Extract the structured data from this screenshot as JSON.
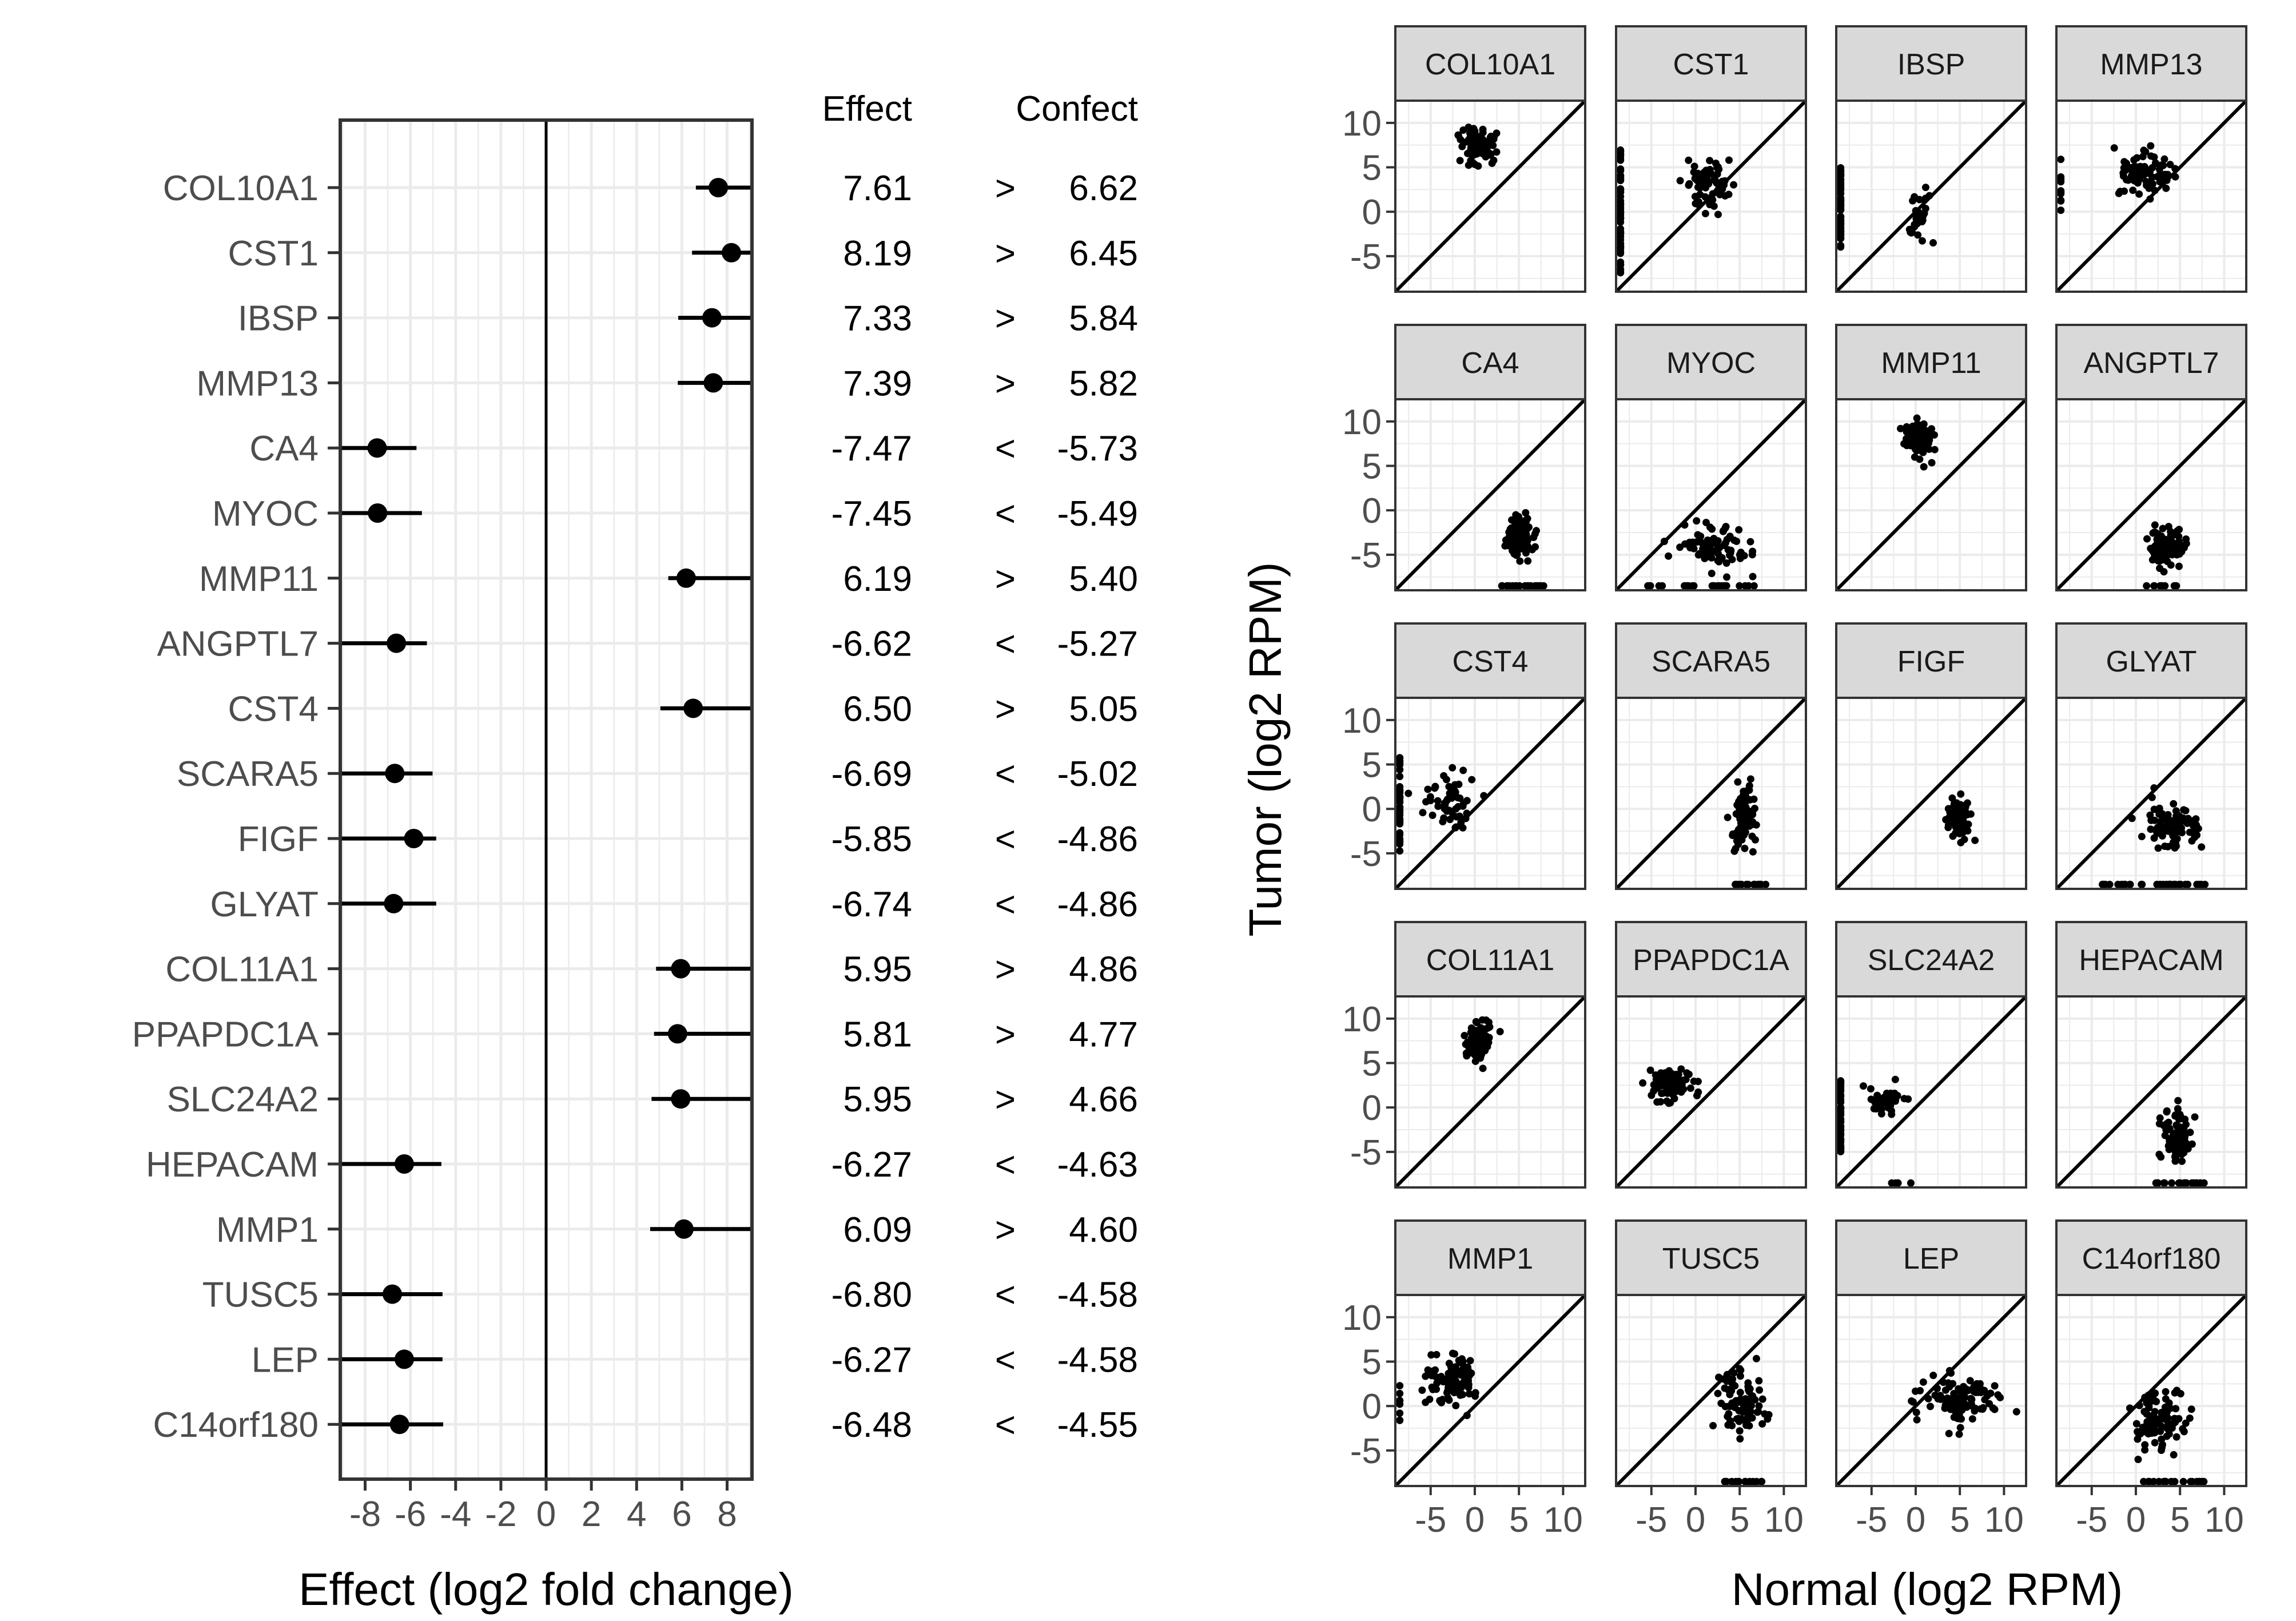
{
  "chart_data": [
    {
      "type": "forest",
      "xlabel": "Effect (log2 fold change)",
      "xticks": [
        -8,
        -6,
        -4,
        -2,
        0,
        2,
        4,
        6,
        8
      ],
      "xlim": [
        -9.1,
        9.1
      ],
      "table_headers": {
        "effect": "Effect",
        "confect": "Confect"
      },
      "rows": [
        {
          "gene": "COL10A1",
          "effect": 7.61,
          "effect_label": "7.61",
          "sign": ">",
          "confect": 6.62,
          "confect_label": "6.62"
        },
        {
          "gene": "CST1",
          "effect": 8.19,
          "effect_label": "8.19",
          "sign": ">",
          "confect": 6.45,
          "confect_label": "6.45"
        },
        {
          "gene": "IBSP",
          "effect": 7.33,
          "effect_label": "7.33",
          "sign": ">",
          "confect": 5.84,
          "confect_label": "5.84"
        },
        {
          "gene": "MMP13",
          "effect": 7.39,
          "effect_label": "7.39",
          "sign": ">",
          "confect": 5.82,
          "confect_label": "5.82"
        },
        {
          "gene": "CA4",
          "effect": -7.47,
          "effect_label": "-7.47",
          "sign": "<",
          "confect": -5.73,
          "confect_label": "-5.73"
        },
        {
          "gene": "MYOC",
          "effect": -7.45,
          "effect_label": "-7.45",
          "sign": "<",
          "confect": -5.49,
          "confect_label": "-5.49"
        },
        {
          "gene": "MMP11",
          "effect": 6.19,
          "effect_label": "6.19",
          "sign": ">",
          "confect": 5.4,
          "confect_label": "5.40"
        },
        {
          "gene": "ANGPTL7",
          "effect": -6.62,
          "effect_label": "-6.62",
          "sign": "<",
          "confect": -5.27,
          "confect_label": "-5.27"
        },
        {
          "gene": "CST4",
          "effect": 6.5,
          "effect_label": "6.50",
          "sign": ">",
          "confect": 5.05,
          "confect_label": "5.05"
        },
        {
          "gene": "SCARA5",
          "effect": -6.69,
          "effect_label": "-6.69",
          "sign": "<",
          "confect": -5.02,
          "confect_label": "-5.02"
        },
        {
          "gene": "FIGF",
          "effect": -5.85,
          "effect_label": "-5.85",
          "sign": "<",
          "confect": -4.86,
          "confect_label": "-4.86"
        },
        {
          "gene": "GLYAT",
          "effect": -6.74,
          "effect_label": "-6.74",
          "sign": "<",
          "confect": -4.86,
          "confect_label": "-4.86"
        },
        {
          "gene": "COL11A1",
          "effect": 5.95,
          "effect_label": "5.95",
          "sign": ">",
          "confect": 4.86,
          "confect_label": "4.86"
        },
        {
          "gene": "PPAPDC1A",
          "effect": 5.81,
          "effect_label": "5.81",
          "sign": ">",
          "confect": 4.77,
          "confect_label": "4.77"
        },
        {
          "gene": "SLC24A2",
          "effect": 5.95,
          "effect_label": "5.95",
          "sign": ">",
          "confect": 4.66,
          "confect_label": "4.66"
        },
        {
          "gene": "HEPACAM",
          "effect": -6.27,
          "effect_label": "-6.27",
          "sign": "<",
          "confect": -4.63,
          "confect_label": "-4.63"
        },
        {
          "gene": "MMP1",
          "effect": 6.09,
          "effect_label": "6.09",
          "sign": ">",
          "confect": 4.6,
          "confect_label": "4.60"
        },
        {
          "gene": "TUSC5",
          "effect": -6.8,
          "effect_label": "-6.80",
          "sign": "<",
          "confect": -4.58,
          "confect_label": "-4.58"
        },
        {
          "gene": "LEP",
          "effect": -6.27,
          "effect_label": "-6.27",
          "sign": "<",
          "confect": -4.58,
          "confect_label": "-4.58"
        },
        {
          "gene": "C14orf180",
          "effect": -6.48,
          "effect_label": "-6.48",
          "sign": "<",
          "confect": -4.55,
          "confect_label": "-4.55"
        }
      ],
      "grid": true
    },
    {
      "type": "scatter",
      "layout": "facet-grid-5x4",
      "xlabel": "Normal (log2 RPM)",
      "ylabel": "Tumor (log2 RPM)",
      "xlim": [
        -9,
        12.5
      ],
      "ylim": [
        -9,
        12.5
      ],
      "xticks": [
        -5,
        0,
        5,
        10
      ],
      "yticks": [
        -5,
        0,
        5,
        10
      ],
      "reference_line": "y = x",
      "facets": [
        {
          "title": "COL10A1",
          "cluster": {
            "x": 0.5,
            "y": 7.5,
            "sx": 1.8,
            "sy": 1.7,
            "n": 95
          }
        },
        {
          "title": "CST1",
          "cluster": {
            "x": 1.5,
            "y": 3.5,
            "sx": 2.2,
            "sy": 2.3,
            "n": 70
          },
          "floor_x": {
            "x": -8.5,
            "ymin": -8,
            "ymax": 7,
            "n": 60
          }
        },
        {
          "title": "IBSP",
          "cluster": {
            "x": 0.5,
            "y": -0.5,
            "sx": 1.2,
            "sy": 2.3,
            "n": 30
          },
          "floor_x": {
            "x": -8.5,
            "ymin": -4,
            "ymax": 5,
            "n": 50
          }
        },
        {
          "title": "MMP13",
          "cluster": {
            "x": 1.0,
            "y": 4.5,
            "sx": 2.5,
            "sy": 2.0,
            "n": 90
          },
          "floor_x": {
            "x": -8.5,
            "ymin": 0,
            "ymax": 6,
            "n": 12
          }
        },
        {
          "title": "CA4",
          "cluster": {
            "x": 5.0,
            "y": -3.0,
            "sx": 1.3,
            "sy": 2.0,
            "n": 85
          },
          "floor_y": {
            "y": -8.5,
            "xmin": 3,
            "xmax": 8,
            "n": 18
          }
        },
        {
          "title": "MYOC",
          "cluster": {
            "x": 2.0,
            "y": -4.0,
            "sx": 3.3,
            "sy": 2.0,
            "n": 80
          },
          "floor_y": {
            "y": -8.5,
            "xmin": -6,
            "xmax": 8,
            "n": 25
          }
        },
        {
          "title": "MMP11",
          "cluster": {
            "x": 0.5,
            "y": 8.0,
            "sx": 1.4,
            "sy": 1.5,
            "n": 95
          }
        },
        {
          "title": "ANGPTL7",
          "cluster": {
            "x": 3.5,
            "y": -4.0,
            "sx": 1.8,
            "sy": 1.8,
            "n": 90
          },
          "floor_y": {
            "y": -8.5,
            "xmin": 1,
            "xmax": 6,
            "n": 10
          }
        },
        {
          "title": "CST4",
          "cluster": {
            "x": -2.5,
            "y": 0.5,
            "sx": 2.4,
            "sy": 2.4,
            "n": 55
          },
          "floor_x": {
            "x": -8.5,
            "ymin": -5,
            "ymax": 6,
            "n": 40
          }
        },
        {
          "title": "SCARA5",
          "cluster": {
            "x": 5.5,
            "y": -1.0,
            "sx": 1.0,
            "sy": 2.8,
            "n": 100
          },
          "floor_y": {
            "y": -8.5,
            "xmin": 4,
            "xmax": 8,
            "n": 12
          }
        },
        {
          "title": "FIGF",
          "cluster": {
            "x": 5.0,
            "y": -1.0,
            "sx": 1.2,
            "sy": 1.8,
            "n": 85
          }
        },
        {
          "title": "GLYAT",
          "cluster": {
            "x": 4.0,
            "y": -2.0,
            "sx": 2.6,
            "sy": 2.4,
            "n": 85
          },
          "floor_y": {
            "y": -8.5,
            "xmin": -4,
            "xmax": 8,
            "n": 30
          }
        },
        {
          "title": "COL11A1",
          "cluster": {
            "x": 0.5,
            "y": 7.5,
            "sx": 1.3,
            "sy": 1.8,
            "n": 95
          }
        },
        {
          "title": "PPAPDC1A",
          "cluster": {
            "x": -3.0,
            "y": 2.5,
            "sx": 1.8,
            "sy": 1.3,
            "n": 100
          }
        },
        {
          "title": "SLC24A2",
          "cluster": {
            "x": -3.0,
            "y": 1.0,
            "sx": 1.8,
            "sy": 1.6,
            "n": 40
          },
          "floor_x": {
            "x": -8.5,
            "ymin": -5,
            "ymax": 3,
            "n": 40
          },
          "floor_y": {
            "y": -8.5,
            "xmin": -3,
            "xmax": 0,
            "n": 4
          }
        },
        {
          "title": "HEPACAM",
          "cluster": {
            "x": 4.5,
            "y": -3.0,
            "sx": 1.4,
            "sy": 2.5,
            "n": 85
          },
          "floor_y": {
            "y": -8.5,
            "xmin": 2,
            "xmax": 8,
            "n": 20
          }
        },
        {
          "title": "MMP1",
          "cluster": {
            "x": -2.5,
            "y": 3.0,
            "sx": 2.3,
            "sy": 2.4,
            "n": 95
          },
          "floor_x": {
            "x": -8.5,
            "ymin": -2,
            "ymax": 3,
            "n": 8
          }
        },
        {
          "title": "TUSC5",
          "cluster": {
            "x": 5.0,
            "y": 0.5,
            "sx": 2.0,
            "sy": 2.8,
            "n": 85
          },
          "floor_y": {
            "y": -8.5,
            "xmin": 3,
            "xmax": 8,
            "n": 14
          }
        },
        {
          "title": "LEP",
          "cluster": {
            "x": 5.0,
            "y": 0.5,
            "sx": 3.3,
            "sy": 2.2,
            "n": 110
          }
        },
        {
          "title": "C14orf180",
          "cluster": {
            "x": 2.5,
            "y": -1.5,
            "sx": 2.6,
            "sy": 2.6,
            "n": 90
          },
          "floor_y": {
            "y": -8.5,
            "xmin": 0,
            "xmax": 8,
            "n": 20
          }
        }
      ],
      "grid": true
    }
  ]
}
